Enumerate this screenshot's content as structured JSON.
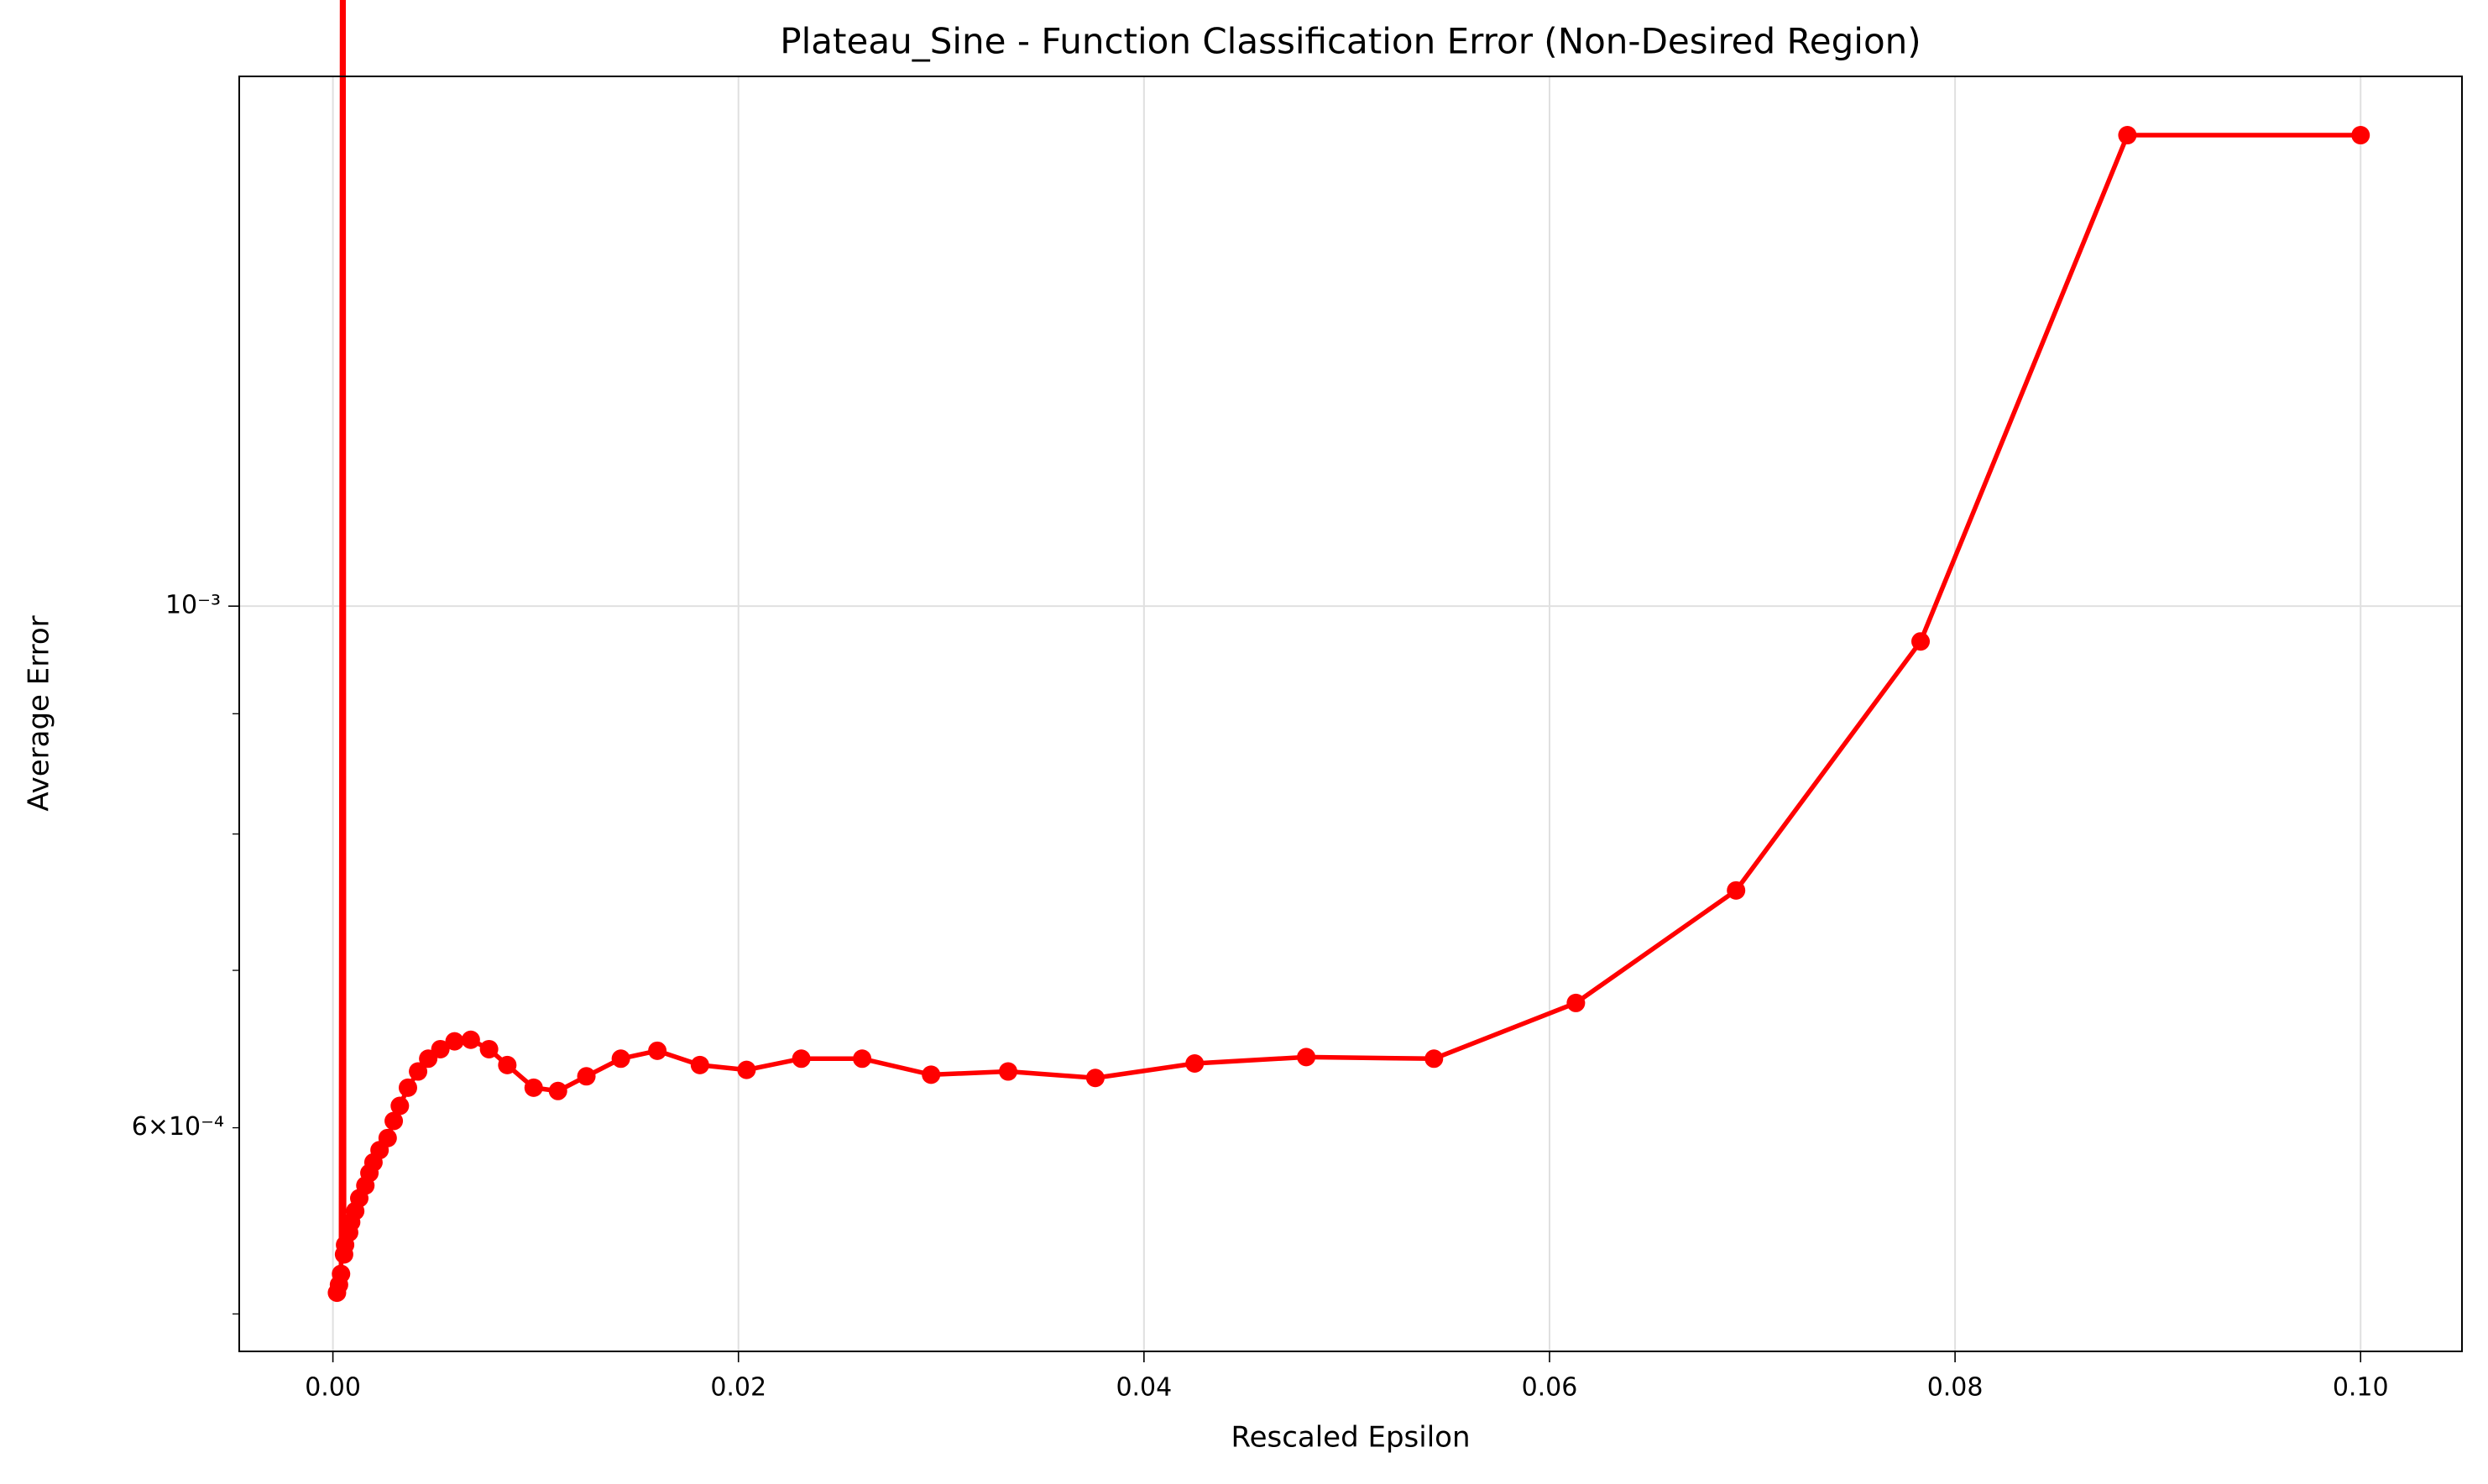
{
  "chart_data": {
    "type": "line",
    "title": "Plateau_Sine - Function Classification Error (Non-Desired Region)",
    "xlabel": "Rescaled Epsilon",
    "ylabel": "Average Error",
    "yscale": "log",
    "grid": true,
    "x": [
      0.0002,
      0.0003,
      0.0004,
      0.0005,
      0.00055,
      0.0006,
      0.0008,
      0.0009,
      0.0011,
      0.0013,
      0.0016,
      0.0018,
      0.002,
      0.0023,
      0.0027,
      0.003,
      0.0033,
      0.0037,
      0.0042,
      0.0047,
      0.0053,
      0.006,
      0.0068,
      0.0077,
      0.0086,
      0.0099,
      0.0111,
      0.0125,
      0.0142,
      0.016,
      0.0181,
      0.0204,
      0.0231,
      0.0261,
      0.0295,
      0.0333,
      0.0376,
      0.0425,
      0.048,
      0.0543,
      0.0613,
      0.0692,
      0.0783,
      0.0885,
      0.1
    ],
    "series": [
      {
        "name": "Average Error",
        "color": "#ff0000",
        "values": [
          0.0005105,
          0.0005145,
          0.00052,
          0.00525,
          0.00053,
          0.000535,
          0.0005415,
          0.000547,
          0.000553,
          0.00056,
          0.000567,
          0.000574,
          0.00058,
          0.000587,
          0.000594,
          0.000604,
          0.000613,
          0.000624,
          0.000634,
          0.000642,
          0.000648,
          0.000653,
          0.000654,
          0.000648,
          0.000638,
          0.000624,
          0.000622,
          0.000631,
          0.000642,
          0.000647,
          0.000638,
          0.000635,
          0.000642,
          0.000642,
          0.000632,
          0.000634,
          0.00063,
          0.000639,
          0.000643,
          0.000642,
          0.000678,
          0.000757,
          0.000966,
          0.001586,
          0.001586
        ]
      }
    ],
    "xlim": [
      -0.00462,
      0.105
    ],
    "ylim": [
      0.000482,
      0.00168
    ],
    "xticks": [
      {
        "value": 0,
        "label": "0.00"
      },
      {
        "value": 0.02,
        "label": "0.02"
      },
      {
        "value": 0.04,
        "label": "0.04"
      },
      {
        "value": 0.06,
        "label": "0.06"
      },
      {
        "value": 0.08,
        "label": "0.08"
      },
      {
        "value": 0.1,
        "label": "0.10"
      }
    ],
    "yticks": [
      {
        "value": 0.001,
        "label": "10⁻³"
      }
    ],
    "yminor_ticks": [
      0.0005,
      {
        "value": 0.0006,
        "label": "6×10⁻⁴"
      },
      0.0007,
      0.0008,
      0.0009
    ]
  }
}
